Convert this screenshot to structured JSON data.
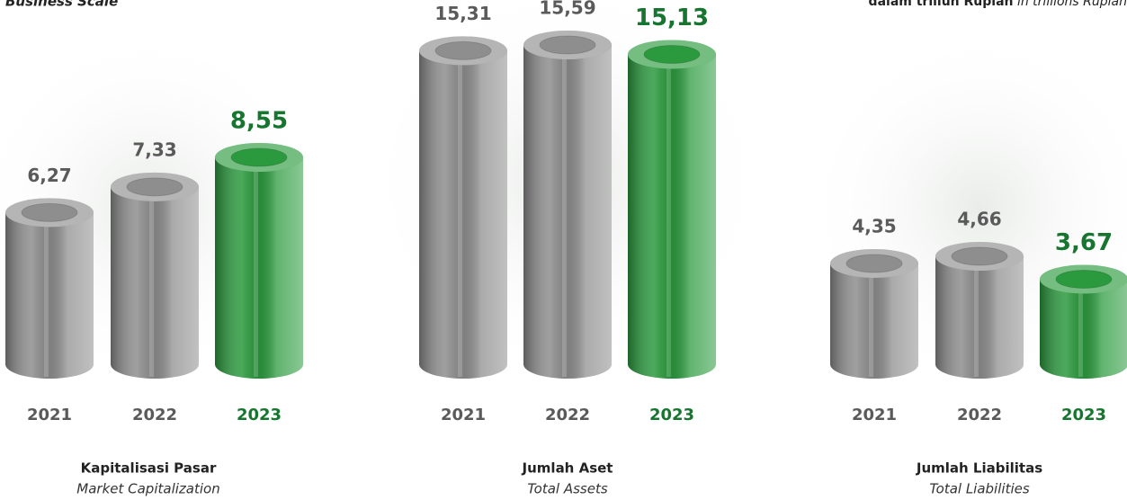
{
  "header": {
    "title": "Business Scale",
    "unit": "dalam triliun Rupiah",
    "unit_en": "in trillions Rupiah"
  },
  "chart_data": [
    {
      "type": "cylinder",
      "title": "Kapitalisasi Pasar",
      "subtitle": "Market Capitalization",
      "categories": [
        "2021",
        "2022",
        "2023"
      ],
      "values": [
        6.27,
        7.33,
        8.55
      ],
      "value_labels": [
        "6,27",
        "7,33",
        "8,55"
      ],
      "colors": [
        "#8e8e8e",
        "#8e8e8e",
        "#2b9a3e"
      ],
      "label_colors": [
        "#5a5a5a",
        "#5a5a5a",
        "#16752e"
      ]
    },
    {
      "type": "cylinder",
      "title": "Jumlah Aset",
      "subtitle": "Total Assets",
      "categories": [
        "2021",
        "2022",
        "2023"
      ],
      "values": [
        15.31,
        15.59,
        15.13
      ],
      "value_labels": [
        "15,31",
        "15,59",
        "15,13"
      ],
      "colors": [
        "#8e8e8e",
        "#8e8e8e",
        "#2b9a3e"
      ],
      "label_colors": [
        "#5a5a5a",
        "#5a5a5a",
        "#16752e"
      ]
    },
    {
      "type": "cylinder",
      "title": "Jumlah Liabilitas",
      "subtitle": "Total Liabilities",
      "categories": [
        "2021",
        "2022",
        "2023"
      ],
      "values": [
        4.35,
        4.66,
        3.67
      ],
      "value_labels": [
        "4,35",
        "4,66",
        "3,67"
      ],
      "colors": [
        "#8e8e8e",
        "#8e8e8e",
        "#2b9a3e"
      ],
      "label_colors": [
        "#5a5a5a",
        "#5a5a5a",
        "#16752e"
      ]
    }
  ]
}
